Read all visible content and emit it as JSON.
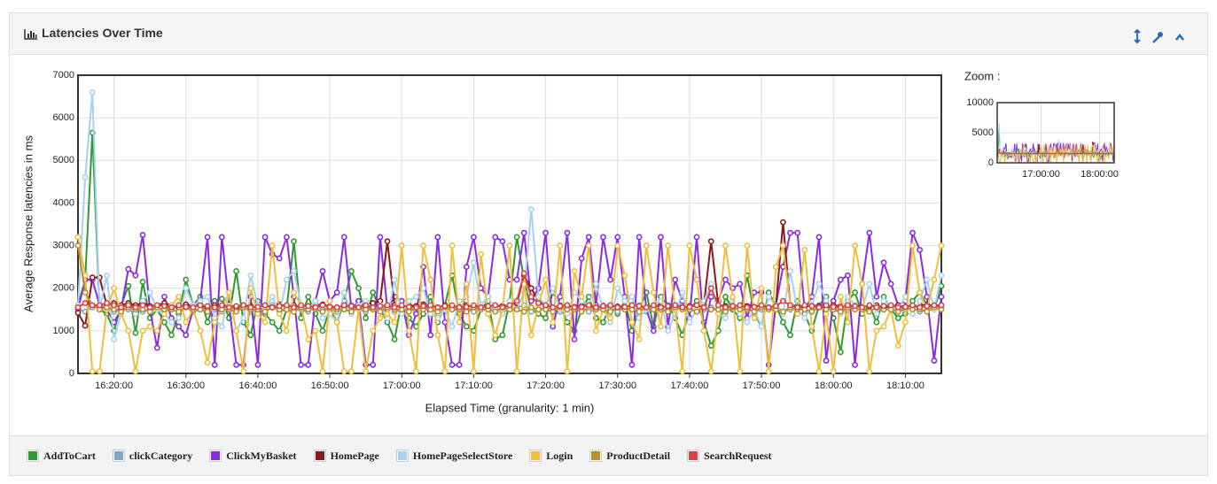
{
  "header": {
    "title": "Latencies Over Time"
  },
  "chart_data": {
    "type": "line",
    "y_label": "Average Response latencies in ms",
    "x_label": "Elapsed Time (granularity: 1 min)",
    "xlim": [
      "16:15:00",
      "18:15:00"
    ],
    "xticks": [
      "16:20:00",
      "16:30:00",
      "16:40:00",
      "16:50:00",
      "17:00:00",
      "17:10:00",
      "17:20:00",
      "17:30:00",
      "17:40:00",
      "17:50:00",
      "18:00:00",
      "18:10:00"
    ],
    "ylim": [
      0,
      7000
    ],
    "yticks": [
      0,
      1000,
      2000,
      3000,
      4000,
      5000,
      6000,
      7000
    ],
    "grid": true,
    "x": [
      "16:15:00",
      "16:16:00",
      "16:17:00",
      "16:18:00",
      "16:19:00",
      "16:20:00",
      "16:21:00",
      "16:22:00",
      "16:23:00",
      "16:24:00",
      "16:25:00",
      "16:26:00",
      "16:27:00",
      "16:28:00",
      "16:29:00",
      "16:30:00",
      "16:31:00",
      "16:32:00",
      "16:33:00",
      "16:34:00",
      "16:35:00",
      "16:36:00",
      "16:37:00",
      "16:38:00",
      "16:39:00",
      "16:40:00",
      "16:41:00",
      "16:42:00",
      "16:43:00",
      "16:44:00",
      "16:45:00",
      "16:46:00",
      "16:47:00",
      "16:48:00",
      "16:49:00",
      "16:50:00",
      "16:51:00",
      "16:52:00",
      "16:53:00",
      "16:54:00",
      "16:55:00",
      "16:56:00",
      "16:57:00",
      "16:58:00",
      "16:59:00",
      "17:00:00",
      "17:01:00",
      "17:02:00",
      "17:03:00",
      "17:04:00",
      "17:05:00",
      "17:06:00",
      "17:07:00",
      "17:08:00",
      "17:09:00",
      "17:10:00",
      "17:11:00",
      "17:12:00",
      "17:13:00",
      "17:14:00",
      "17:15:00",
      "17:16:00",
      "17:17:00",
      "17:18:00",
      "17:19:00",
      "17:20:00",
      "17:21:00",
      "17:22:00",
      "17:23:00",
      "17:24:00",
      "17:25:00",
      "17:26:00",
      "17:27:00",
      "17:28:00",
      "17:29:00",
      "17:30:00",
      "17:31:00",
      "17:32:00",
      "17:33:00",
      "17:34:00",
      "17:35:00",
      "17:36:00",
      "17:37:00",
      "17:38:00",
      "17:39:00",
      "17:40:00",
      "17:41:00",
      "17:42:00",
      "17:43:00",
      "17:44:00",
      "17:45:00",
      "17:46:00",
      "17:47:00",
      "17:48:00",
      "17:49:00",
      "17:50:00",
      "17:51:00",
      "17:52:00",
      "17:53:00",
      "17:54:00",
      "17:55:00",
      "17:56:00",
      "17:57:00",
      "17:58:00",
      "17:59:00",
      "18:00:00",
      "18:01:00",
      "18:02:00",
      "18:03:00",
      "18:04:00",
      "18:05:00",
      "18:06:00",
      "18:07:00",
      "18:08:00",
      "18:09:00",
      "18:10:00",
      "18:11:00",
      "18:12:00",
      "18:13:00",
      "18:14:00",
      "18:15:00"
    ],
    "series": [
      {
        "name": "AddToCart",
        "color": "#2f9a32",
        "values": [
          1600,
          2200,
          5650,
          1500,
          1400,
          1000,
          1600,
          2050,
          950,
          2150,
          1300,
          1500,
          1200,
          900,
          1400,
          2200,
          1600,
          1800,
          1200,
          1700,
          1750,
          1300,
          2400,
          1200,
          900,
          1700,
          1400,
          1200,
          1000,
          1500,
          3100,
          1300,
          1800,
          1400,
          1000,
          1500,
          1200,
          1700,
          2400,
          2000,
          1300,
          1900,
          1500,
          1200,
          800,
          1700,
          1300,
          1100,
          1400,
          1800,
          1200,
          1600,
          2300,
          1400,
          1100,
          1000,
          1500,
          1700,
          800,
          900,
          1700,
          3200,
          2200,
          1500,
          1400,
          1300,
          1900,
          1600,
          1200,
          1000,
          1500,
          1800,
          1300,
          1200,
          1600,
          1400,
          1700,
          1000,
          1500,
          1900,
          1100,
          1800,
          1600,
          1300,
          900,
          1500,
          1700,
          1200,
          650,
          1000,
          1800,
          1500,
          1300,
          2300,
          1400,
          1100,
          1900,
          1600,
          1200,
          900,
          1700,
          1400,
          1000,
          1600,
          1800,
          1300,
          500,
          1700,
          1900,
          1400,
          1600,
          1200,
          1800,
          1500,
          1300,
          1400,
          1700,
          1900,
          1600,
          1500,
          2050
        ]
      },
      {
        "name": "clickCategory",
        "color": "#7ea6c8",
        "values": [
          1500,
          1450,
          1550,
          1600,
          1500,
          1450,
          1550,
          1500,
          1600,
          1450,
          1500,
          1550,
          1450,
          1500,
          1600,
          1550,
          1450,
          1500,
          1550,
          1500,
          1450,
          1600,
          1500,
          1550,
          1450,
          1500,
          1550,
          1600,
          1450,
          1500,
          1550,
          1500,
          1450,
          1600,
          1500,
          1550,
          1450,
          1500,
          1600,
          1500,
          1450,
          1550,
          1500,
          1600,
          1450,
          1500,
          1550,
          1450,
          1500,
          1600,
          1550,
          1450,
          1500,
          1550,
          1500,
          1450,
          1600,
          1500,
          1550,
          1450,
          1500,
          1550,
          1600,
          1450,
          1500,
          1550,
          1500,
          1450,
          1600,
          1500,
          1550,
          1450,
          1500,
          1600,
          1500,
          1450,
          1550,
          1500,
          1600,
          1450,
          1500,
          1550,
          1450,
          1500,
          1600,
          1550,
          1450,
          1500,
          1550,
          1500,
          1450,
          1600,
          1500,
          1550,
          1450,
          1500,
          1550,
          1600,
          1450,
          1500,
          1550,
          1500,
          1450,
          1600,
          1500,
          1550,
          1450,
          1500,
          1600,
          1500,
          1450,
          1550,
          1500,
          1600,
          1450,
          1500,
          1550,
          1450,
          1500,
          1600,
          1550
        ]
      },
      {
        "name": "ClickMyBasket",
        "color": "#8a2be2",
        "values": [
          1500,
          2200,
          2200,
          1600,
          1500,
          1200,
          1500,
          2450,
          2300,
          3250,
          1500,
          600,
          1800,
          1300,
          1100,
          900,
          1500,
          1700,
          3200,
          200,
          3200,
          1600,
          200,
          200,
          1800,
          200,
          3200,
          2800,
          2700,
          3200,
          1800,
          200,
          200,
          1700,
          2400,
          1700,
          1900,
          3200,
          1500,
          1700,
          200,
          200,
          3200,
          1500,
          1800,
          1700,
          900,
          1400,
          2500,
          900,
          3200,
          1200,
          200,
          200,
          2500,
          3200,
          2000,
          1800,
          3200,
          3100,
          2200,
          2200,
          3300,
          1700,
          2000,
          3300,
          1100,
          1800,
          3300,
          800,
          2700,
          3200,
          1600,
          3200,
          2200,
          3200,
          1800,
          200,
          3200,
          1500,
          1000,
          3200,
          1100,
          2200,
          1700,
          1300,
          3200,
          1000,
          1800,
          1700,
          2200,
          2000,
          2100,
          1300,
          1900,
          1900,
          200,
          1600,
          2500,
          3300,
          3300,
          1500,
          1800,
          3200,
          300,
          1700,
          2200,
          2300,
          200,
          2100,
          3300,
          1800,
          2600,
          2100,
          1600,
          1700,
          3300,
          2900,
          1800,
          300,
          1800
        ]
      },
      {
        "name": "HomePage",
        "color": "#8b1a1a",
        "values": [
          1420,
          1120,
          2250,
          2250,
          1600,
          1650,
          1600,
          1650,
          1600,
          1650,
          1580,
          1600,
          1650,
          1600,
          1550,
          1620,
          1580,
          1600,
          1550,
          1600,
          1580,
          1620,
          1550,
          1600,
          1580,
          1550,
          1600,
          1550,
          1620,
          1580,
          1600,
          1550,
          1580,
          1600,
          1620,
          1570,
          1550,
          1600,
          1580,
          1560,
          1600,
          1650,
          1700,
          3100,
          1600,
          1550,
          1600,
          1580,
          1620,
          1560,
          1550,
          1600,
          1580,
          1560,
          1600,
          1550,
          1580,
          1570,
          1600,
          1580,
          1600,
          1650,
          2300,
          2000,
          1700,
          1600,
          1550,
          1580,
          1600,
          1560,
          1580,
          1600,
          1550,
          1580,
          1600,
          1570,
          1560,
          1600,
          1580,
          1550,
          1600,
          1580,
          1560,
          1600,
          1550,
          1580,
          1600,
          1620,
          3100,
          1600,
          1580,
          1550,
          1600,
          1580,
          1560,
          1600,
          1550,
          1580,
          3550,
          1600,
          1580,
          1560,
          1600,
          1580,
          1550,
          1600,
          1580,
          1570,
          1600,
          1560,
          1580,
          1600,
          1550,
          1580,
          1600,
          1560,
          1580,
          1600,
          1620,
          1580,
          1600
        ]
      },
      {
        "name": "HomePageSelectStore",
        "color": "#a6d2f0",
        "values": [
          1600,
          4600,
          6600,
          1500,
          2300,
          800,
          1400,
          1600,
          1400,
          1700,
          1900,
          1500,
          1400,
          1200,
          1300,
          2000,
          1600,
          1700,
          1800,
          1300,
          1100,
          1900,
          1000,
          1300,
          2300,
          1600,
          1500,
          1800,
          1400,
          2200,
          2400,
          1600,
          1500,
          1700,
          1300,
          1400,
          1200,
          1900,
          1400,
          1600,
          1700,
          1500,
          1600,
          1300,
          2200,
          1400,
          1700,
          1800,
          2000,
          1400,
          1300,
          1500,
          1100,
          1700,
          1800,
          2600,
          1600,
          1800,
          1500,
          1400,
          1700,
          1500,
          1900,
          3850,
          1800,
          1600,
          2000,
          1500,
          1400,
          1900,
          1700,
          1600,
          2100,
          1500,
          1200,
          2000,
          1700,
          1800,
          1300,
          1500,
          1600,
          1700,
          1000,
          1400,
          1900,
          1200,
          1500,
          1700,
          2100,
          1400,
          1300,
          1700,
          1400,
          1200,
          1500,
          1100,
          1800,
          1600,
          1400,
          2400,
          1500,
          1300,
          1600,
          2100,
          1700,
          1500,
          1400,
          1800,
          1600,
          1500,
          2100,
          1400,
          1700,
          1600,
          1500,
          1800,
          1400,
          1700,
          2200,
          1500,
          2300
        ]
      },
      {
        "name": "Login",
        "color": "#efbe3a",
        "values": [
          3200,
          2300,
          50,
          50,
          1500,
          2000,
          1400,
          1000,
          50,
          1000,
          1100,
          1000,
          1400,
          1600,
          1800,
          1200,
          1500,
          1000,
          250,
          1200,
          1500,
          1900,
          1000,
          50,
          2000,
          1400,
          1200,
          3000,
          1400,
          1000,
          1900,
          1600,
          800,
          1000,
          50,
          1700,
          1200,
          50,
          50,
          1500,
          50,
          1000,
          1300,
          1400,
          1200,
          3000,
          1000,
          50,
          3000,
          2200,
          900,
          50,
          3000,
          1200,
          2100,
          50,
          2800,
          1400,
          900,
          1500,
          3000,
          50,
          2100,
          900,
          1600,
          2200,
          1200,
          3000,
          50,
          2400,
          1800,
          3000,
          1000,
          1500,
          1300,
          3000,
          2300,
          1200,
          800,
          3000,
          1900,
          1100,
          3000,
          1500,
          50,
          3000,
          2200,
          1000,
          50,
          1400,
          3000,
          1800,
          50,
          3000,
          1300,
          2000,
          50,
          2500,
          3000,
          1600,
          1400,
          2900,
          1100,
          50,
          1400,
          50,
          1800,
          1200,
          3000,
          2100,
          50,
          1000,
          1100,
          1500,
          650,
          1200,
          3000,
          1900,
          1500,
          2200,
          3000
        ]
      },
      {
        "name": "ProductDetail",
        "color": "#b8902a",
        "values": [
          3000,
          1900,
          1600,
          1500,
          1550,
          1500,
          1450,
          1550,
          1500,
          1500,
          1450,
          1550,
          1500,
          1500,
          1450,
          1550,
          1500,
          1500,
          1450,
          1550,
          1500,
          1500,
          1450,
          1550,
          1500,
          1500,
          1450,
          1550,
          1500,
          1500,
          1450,
          1550,
          1500,
          1500,
          1450,
          1550,
          1500,
          1500,
          1450,
          1550,
          1500,
          1500,
          1450,
          1550,
          1500,
          1500,
          1450,
          1550,
          1500,
          1500,
          1450,
          1550,
          1500,
          1500,
          1450,
          1550,
          1500,
          1500,
          1450,
          1550,
          1500,
          1500,
          1450,
          1550,
          1500,
          1500,
          1450,
          1550,
          1500,
          1500,
          1450,
          1550,
          1500,
          1500,
          1450,
          1550,
          1500,
          1500,
          1450,
          1550,
          1500,
          1500,
          1450,
          1550,
          1500,
          1500,
          1450,
          1550,
          1500,
          1500,
          1450,
          1550,
          1500,
          1500,
          1450,
          1550,
          1500,
          1500,
          1450,
          1550,
          1500,
          1500,
          1450,
          1550,
          1500,
          1500,
          1450,
          1550,
          1500,
          1500,
          1450,
          1550,
          1500,
          1500,
          1450,
          1550,
          1500,
          1500,
          1450,
          1550,
          1500
        ]
      },
      {
        "name": "SearchRequest",
        "color": "#d94343",
        "values": [
          1550,
          1650,
          1600,
          1600,
          1650,
          1600,
          1550,
          1600,
          1550,
          1600,
          1550,
          1600,
          1580,
          1550,
          1600,
          1560,
          1550,
          1600,
          1580,
          1550,
          1600,
          1550,
          1580,
          1600,
          1550,
          1560,
          1600,
          1550,
          1580,
          1600,
          1550,
          1600,
          1580,
          1550,
          1600,
          1560,
          1550,
          1600,
          1580,
          1550,
          1600,
          1550,
          1580,
          1600,
          1550,
          1600,
          1560,
          1550,
          1580,
          1600,
          1550,
          1580,
          1600,
          1550,
          1560,
          1600,
          1550,
          1580,
          1600,
          1550,
          1600,
          1700,
          2350,
          1800,
          1650,
          1600,
          1550,
          1580,
          1600,
          1550,
          1560,
          1600,
          1550,
          1580,
          1600,
          1550,
          1560,
          1600,
          1580,
          1550,
          1600,
          1550,
          1580,
          1600,
          1550,
          1560,
          1600,
          1550,
          2000,
          1600,
          1550,
          1580,
          1600,
          1550,
          1560,
          1600,
          1550,
          1580,
          1700,
          1600,
          1550,
          1600,
          1580,
          1550,
          1600,
          1560,
          1550,
          1600,
          1580,
          1550,
          1600,
          1550,
          1580,
          1600,
          1550,
          1560,
          1600,
          1550,
          1580,
          1600,
          1600
        ]
      }
    ]
  },
  "zoom": {
    "label": "Zoom :",
    "xlim": [
      "16:15:00",
      "18:15:00"
    ],
    "ylim": [
      0,
      10000
    ],
    "yticks": [
      0,
      5000,
      10000
    ],
    "xticks": [
      "17:00:00",
      "18:00:00"
    ]
  }
}
